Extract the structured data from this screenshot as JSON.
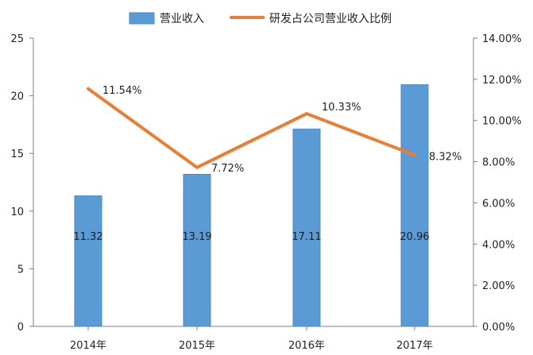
{
  "chart_data": {
    "type": "bar",
    "categories": [
      "2014年",
      "2015年",
      "2016年",
      "2017年"
    ],
    "series": [
      {
        "name": "营业收入",
        "type": "bar",
        "axis": "left",
        "values": [
          11.32,
          13.19,
          17.11,
          20.96
        ],
        "labels": [
          "11.32",
          "13.19",
          "17.11",
          "20.96"
        ],
        "color": "#5b9bd5"
      },
      {
        "name": "研发占公司营业收入比例",
        "type": "line",
        "axis": "right",
        "values": [
          11.54,
          7.72,
          10.33,
          8.32
        ],
        "labels": [
          "11.54%",
          "7.72%",
          "10.33%",
          "8.32%"
        ],
        "color": "#ed7d31"
      }
    ],
    "left_axis": {
      "min": 0,
      "max": 25,
      "ticks": [
        0,
        5,
        10,
        15,
        20,
        25
      ],
      "tick_labels": [
        "0",
        "5",
        "10",
        "15",
        "20",
        "25"
      ]
    },
    "right_axis": {
      "min": 0,
      "max": 14,
      "ticks": [
        0,
        2,
        4,
        6,
        8,
        10,
        12,
        14
      ],
      "tick_labels": [
        "0.00%",
        "2.00%",
        "4.00%",
        "6.00%",
        "8.00%",
        "10.00%",
        "12.00%",
        "14.00%"
      ]
    },
    "legend": "top",
    "grid": false,
    "title": "",
    "xlabel": "",
    "ylabel": ""
  }
}
